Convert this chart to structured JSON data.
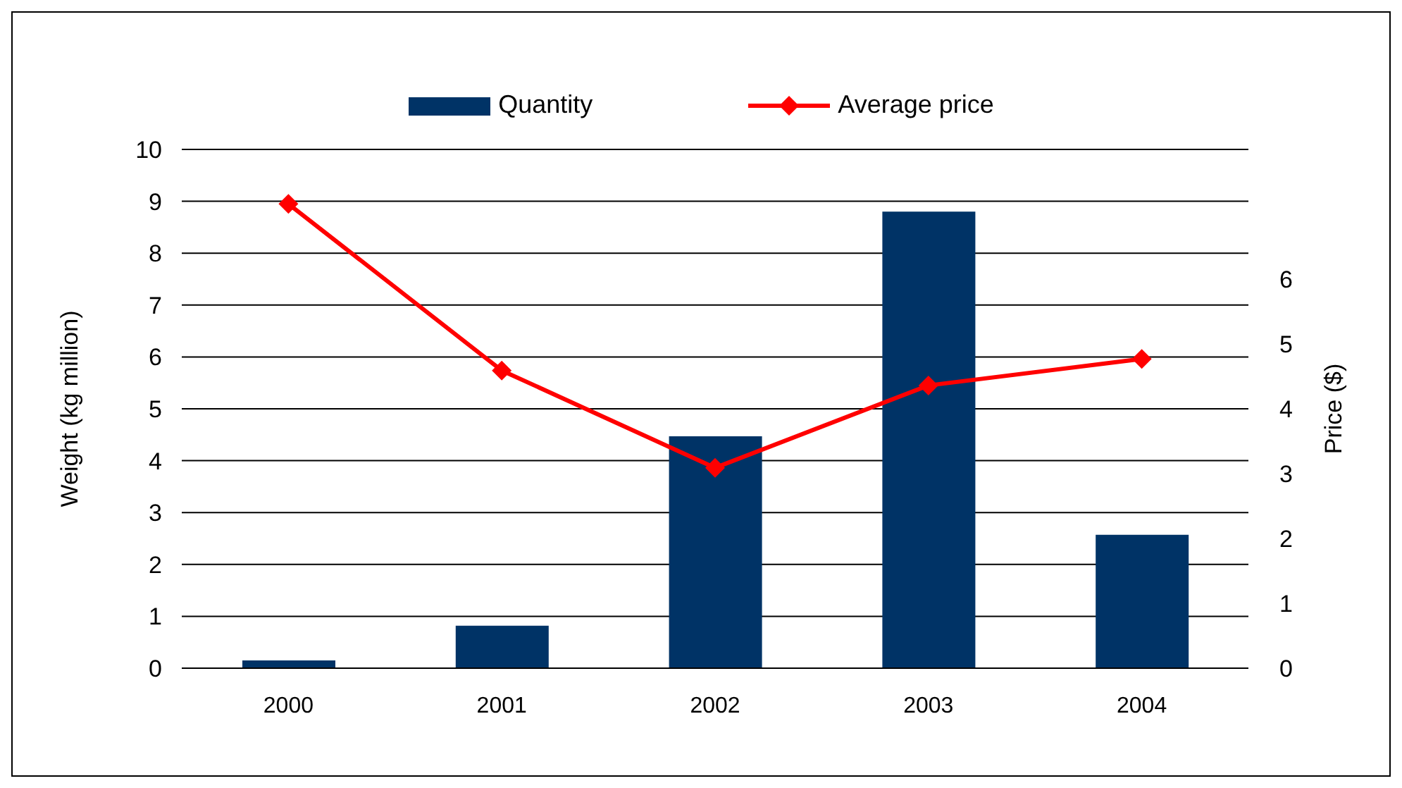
{
  "chart_data": {
    "type": "bar",
    "categories": [
      "2000",
      "2001",
      "2002",
      "2003",
      "2004"
    ],
    "series": [
      {
        "name": "Quantity",
        "color": "#003366",
        "values": [
          0.15,
          0.82,
          4.47,
          8.8,
          2.57
        ]
      },
      {
        "name": "Average price",
        "type": "line",
        "axis": "y2",
        "color": "#ff0000",
        "values": [
          7.16,
          4.59,
          3.09,
          4.36,
          4.77
        ]
      }
    ],
    "ylabel": "Weight (kg million)",
    "y2label": "Price ($)",
    "ylim": [
      0,
      10
    ],
    "yticks": [
      0,
      1,
      2,
      3,
      4,
      5,
      6,
      7,
      8,
      9,
      10
    ],
    "y2lim": [
      0,
      8
    ],
    "y2ticks": [
      0,
      1,
      2,
      3,
      4,
      5,
      6
    ],
    "grid": "y",
    "legend": "top",
    "marker": "diamond"
  }
}
